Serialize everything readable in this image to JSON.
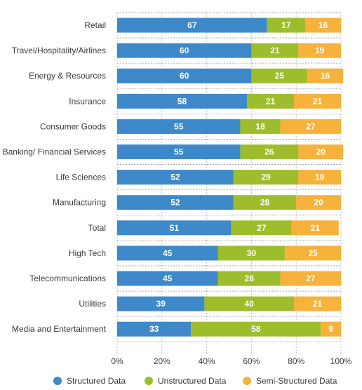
{
  "chart_data": {
    "type": "bar",
    "orientation": "horizontal",
    "stacked": true,
    "title": "",
    "xlabel": "",
    "ylabel": "",
    "xlim": [
      0,
      100
    ],
    "x_ticks": [
      "0%",
      "20%",
      "40%",
      "60%",
      "80%",
      "100%"
    ],
    "categories": [
      "Retail",
      "Travel/Hospitality/Airlines",
      "Energy & Resources",
      "Insurance",
      "Consumer Goods",
      "Banking/ Financial Services",
      "Life Sciences",
      "Manufacturing",
      "Total",
      "High Tech",
      "Telecommunications",
      "Utilities",
      "Media and Entertainment"
    ],
    "series": [
      {
        "name": "Structured Data",
        "color": "#3d89c9",
        "values": [
          67,
          60,
          60,
          58,
          55,
          55,
          52,
          52,
          51,
          45,
          45,
          39,
          33
        ]
      },
      {
        "name": "Unstructured Data",
        "color": "#9ebd2c",
        "values": [
          17,
          21,
          25,
          21,
          18,
          26,
          29,
          28,
          27,
          30,
          28,
          40,
          58
        ]
      },
      {
        "name": "Semi-Structured Data",
        "color": "#f7b23b",
        "values": [
          16,
          19,
          16,
          21,
          27,
          20,
          19,
          20,
          21,
          25,
          27,
          21,
          9
        ]
      }
    ],
    "grid": "vertical dashed",
    "legend_position": "bottom"
  }
}
